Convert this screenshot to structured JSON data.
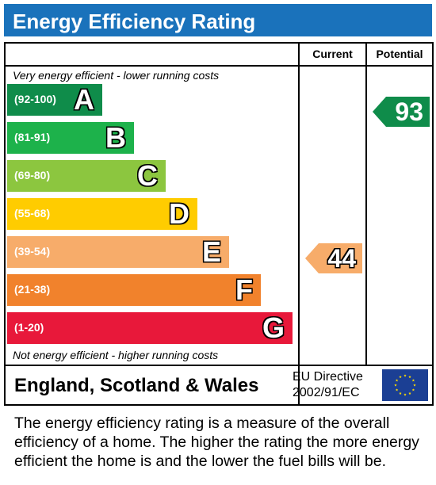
{
  "title": "Energy Efficiency Rating",
  "columns": {
    "current": "Current",
    "potential": "Potential"
  },
  "captions": {
    "top": "Very energy efficient - lower running costs",
    "bottom": "Not energy efficient - higher running costs"
  },
  "bands": [
    {
      "range": "(92-100)",
      "letter": "A",
      "color": "#0f8c4a"
    },
    {
      "range": "(81-91)",
      "letter": "B",
      "color": "#1db24b"
    },
    {
      "range": "(69-80)",
      "letter": "C",
      "color": "#8cc63f"
    },
    {
      "range": "(55-68)",
      "letter": "D",
      "color": "#ffcc00"
    },
    {
      "range": "(39-54)",
      "letter": "E",
      "color": "#f7ac6a"
    },
    {
      "range": "(21-38)",
      "letter": "F",
      "color": "#f1822c"
    },
    {
      "range": "(1-20)",
      "letter": "G",
      "color": "#e8183a"
    }
  ],
  "ratings": {
    "current": {
      "value": "44",
      "band": "E",
      "color": "#f7ac6a"
    },
    "potential": {
      "value": "93",
      "band": "A",
      "color": "#0f8c4a"
    }
  },
  "footer_row": {
    "region": "England, Scotland & Wales",
    "directive_line1": "EU Directive",
    "directive_line2": "2002/91/EC",
    "flag_icon": "eu-flag-icon"
  },
  "description": "The energy efficiency rating is a measure of the overall efficiency of a home. The higher the rating the more energy efficient the home is and the lower the fuel bills will be."
}
